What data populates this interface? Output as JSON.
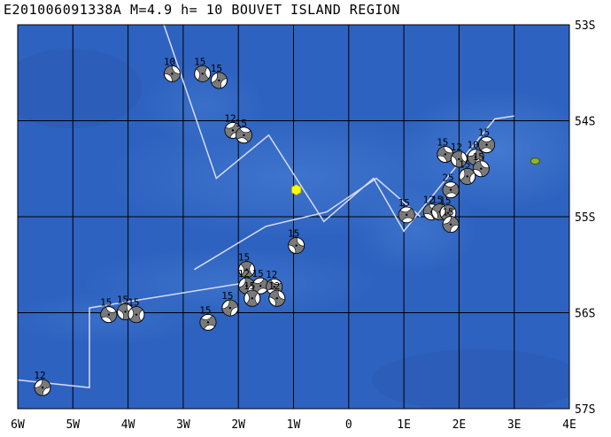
{
  "title": "E201006091338A  M=4.9  h= 10  BOUVET ISLAND REGION",
  "map": {
    "lon_range": [
      -6,
      4
    ],
    "lat_range": [
      -57,
      -53
    ],
    "lon_ticks": [
      {
        "v": -6,
        "label": "6W"
      },
      {
        "v": -5,
        "label": "5W"
      },
      {
        "v": -4,
        "label": "4W"
      },
      {
        "v": -3,
        "label": "3W"
      },
      {
        "v": -2,
        "label": "2W"
      },
      {
        "v": -1,
        "label": "1W"
      },
      {
        "v": 0,
        "label": "0"
      },
      {
        "v": 1,
        "label": "1E"
      },
      {
        "v": 2,
        "label": "2E"
      },
      {
        "v": 3,
        "label": "3E"
      },
      {
        "v": 4,
        "label": "4E"
      }
    ],
    "lat_ticks": [
      {
        "v": -53,
        "label": "53S"
      },
      {
        "v": -54,
        "label": "54S"
      },
      {
        "v": -55,
        "label": "55S"
      },
      {
        "v": -56,
        "label": "56S"
      },
      {
        "v": -57,
        "label": "57S"
      }
    ],
    "colors": {
      "ocean": "#2e62c0",
      "shallow": "#4f87da",
      "grid": "#000000",
      "plate_boundary": "#d8dcf0",
      "epicenter": "#ffff00",
      "island": "#8fb526",
      "beachball_dark": "#7a7a7a"
    },
    "epicenter": {
      "lon": -0.95,
      "lat": -54.72
    },
    "island": {
      "name_icon": "bouvet-island",
      "lon": 3.38,
      "lat": -54.42
    },
    "plate_boundary": [
      [
        [
          -3.35,
          -53.0
        ],
        [
          -2.4,
          -54.6
        ],
        [
          -1.45,
          -54.15
        ],
        [
          -0.45,
          -55.05
        ],
        [
          0.45,
          -54.6
        ],
        [
          1.0,
          -55.15
        ],
        [
          2.65,
          -53.98
        ],
        [
          3.0,
          -53.95
        ]
      ],
      [
        [
          -2.8,
          -55.55
        ],
        [
          -1.5,
          -55.1
        ],
        [
          -0.4,
          -54.95
        ],
        [
          0.5,
          -54.6
        ],
        [
          1.3,
          -55.0
        ]
      ]
    ]
  },
  "events": [
    {
      "lon": -3.2,
      "lat": -53.51,
      "depth": "10"
    },
    {
      "lon": -2.65,
      "lat": -53.51,
      "depth": "15"
    },
    {
      "lon": -2.35,
      "lat": -53.58,
      "depth": "15"
    },
    {
      "lon": -2.1,
      "lat": -54.1,
      "depth": "12"
    },
    {
      "lon": -1.9,
      "lat": -54.15,
      "depth": "15"
    },
    {
      "lon": -0.95,
      "lat": -55.3,
      "depth": "15"
    },
    {
      "lon": -1.85,
      "lat": -55.55,
      "depth": "15"
    },
    {
      "lon": -1.85,
      "lat": -55.72,
      "depth": "12"
    },
    {
      "lon": -1.6,
      "lat": -55.72,
      "depth": "15"
    },
    {
      "lon": -1.35,
      "lat": -55.73,
      "depth": "12"
    },
    {
      "lon": -1.3,
      "lat": -55.85,
      "depth": "12"
    },
    {
      "lon": -1.75,
      "lat": -55.85,
      "depth": "15"
    },
    {
      "lon": -2.15,
      "lat": -55.95,
      "depth": "15"
    },
    {
      "lon": -2.55,
      "lat": -56.1,
      "depth": "15"
    },
    {
      "lon": -4.35,
      "lat": -56.02,
      "depth": "15"
    },
    {
      "lon": -4.05,
      "lat": -55.99,
      "depth": "15"
    },
    {
      "lon": -3.85,
      "lat": -56.02,
      "depth": "15"
    },
    {
      "lon": -5.55,
      "lat": -56.78,
      "depth": "12"
    },
    {
      "lon": 1.05,
      "lat": -54.98,
      "depth": "15"
    },
    {
      "lon": 1.5,
      "lat": -54.95,
      "depth": "12"
    },
    {
      "lon": 1.65,
      "lat": -54.95,
      "depth": "15"
    },
    {
      "lon": 1.8,
      "lat": -54.96,
      "depth": "15"
    },
    {
      "lon": 1.85,
      "lat": -55.08,
      "depth": "15"
    },
    {
      "lon": 1.85,
      "lat": -54.72,
      "depth": "25"
    },
    {
      "lon": 1.75,
      "lat": -54.35,
      "depth": "15"
    },
    {
      "lon": 2.0,
      "lat": -54.4,
      "depth": "12"
    },
    {
      "lon": 2.15,
      "lat": -54.58,
      "depth": "15"
    },
    {
      "lon": 2.3,
      "lat": -54.38,
      "depth": "10"
    },
    {
      "lon": 2.5,
      "lat": -54.25,
      "depth": "15"
    },
    {
      "lon": 2.4,
      "lat": -54.5,
      "depth": "15"
    }
  ]
}
